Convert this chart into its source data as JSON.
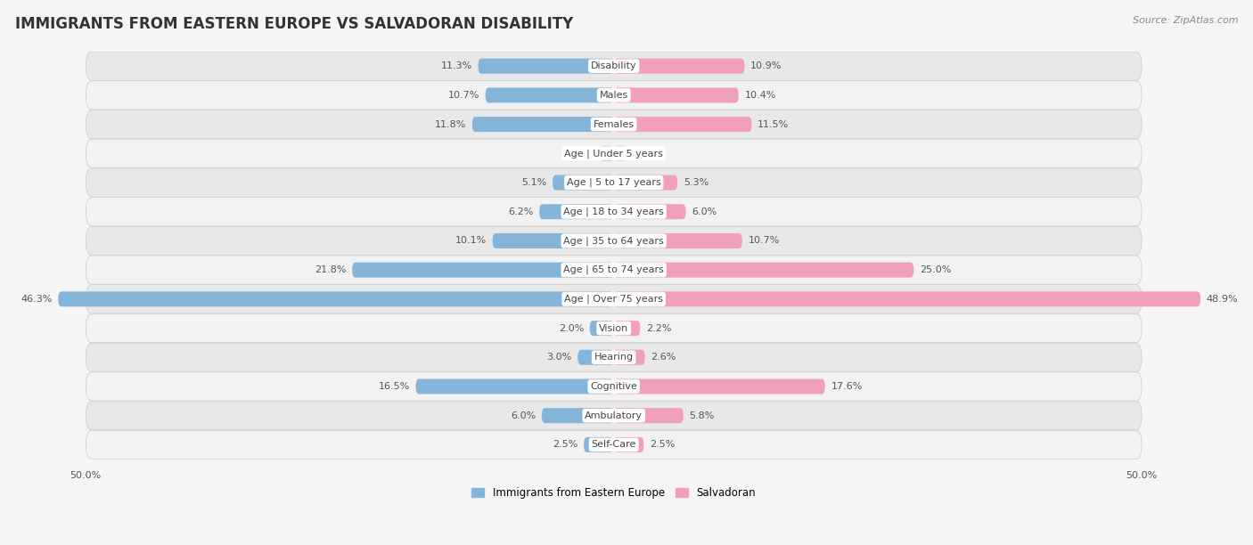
{
  "title": "IMMIGRANTS FROM EASTERN EUROPE VS SALVADORAN DISABILITY",
  "source": "Source: ZipAtlas.com",
  "categories": [
    "Disability",
    "Males",
    "Females",
    "Age | Under 5 years",
    "Age | 5 to 17 years",
    "Age | 18 to 34 years",
    "Age | 35 to 64 years",
    "Age | 65 to 74 years",
    "Age | Over 75 years",
    "Vision",
    "Hearing",
    "Cognitive",
    "Ambulatory",
    "Self-Care"
  ],
  "left_values": [
    11.3,
    10.7,
    11.8,
    1.2,
    5.1,
    6.2,
    10.1,
    21.8,
    46.3,
    2.0,
    3.0,
    16.5,
    6.0,
    2.5
  ],
  "right_values": [
    10.9,
    10.4,
    11.5,
    1.1,
    5.3,
    6.0,
    10.7,
    25.0,
    48.9,
    2.2,
    2.6,
    17.6,
    5.8,
    2.5
  ],
  "left_color": "#85b5d9",
  "right_color": "#f0a0b8",
  "max_val": 50.0,
  "legend_left": "Immigrants from Eastern Europe",
  "legend_right": "Salvadoran",
  "row_bg_odd": "#f2f2f2",
  "row_bg_even": "#e8e8e8",
  "fig_bg": "#f5f5f5",
  "title_fontsize": 12,
  "label_fontsize": 8.5,
  "cat_fontsize": 8,
  "value_fontsize": 8,
  "source_fontsize": 8
}
